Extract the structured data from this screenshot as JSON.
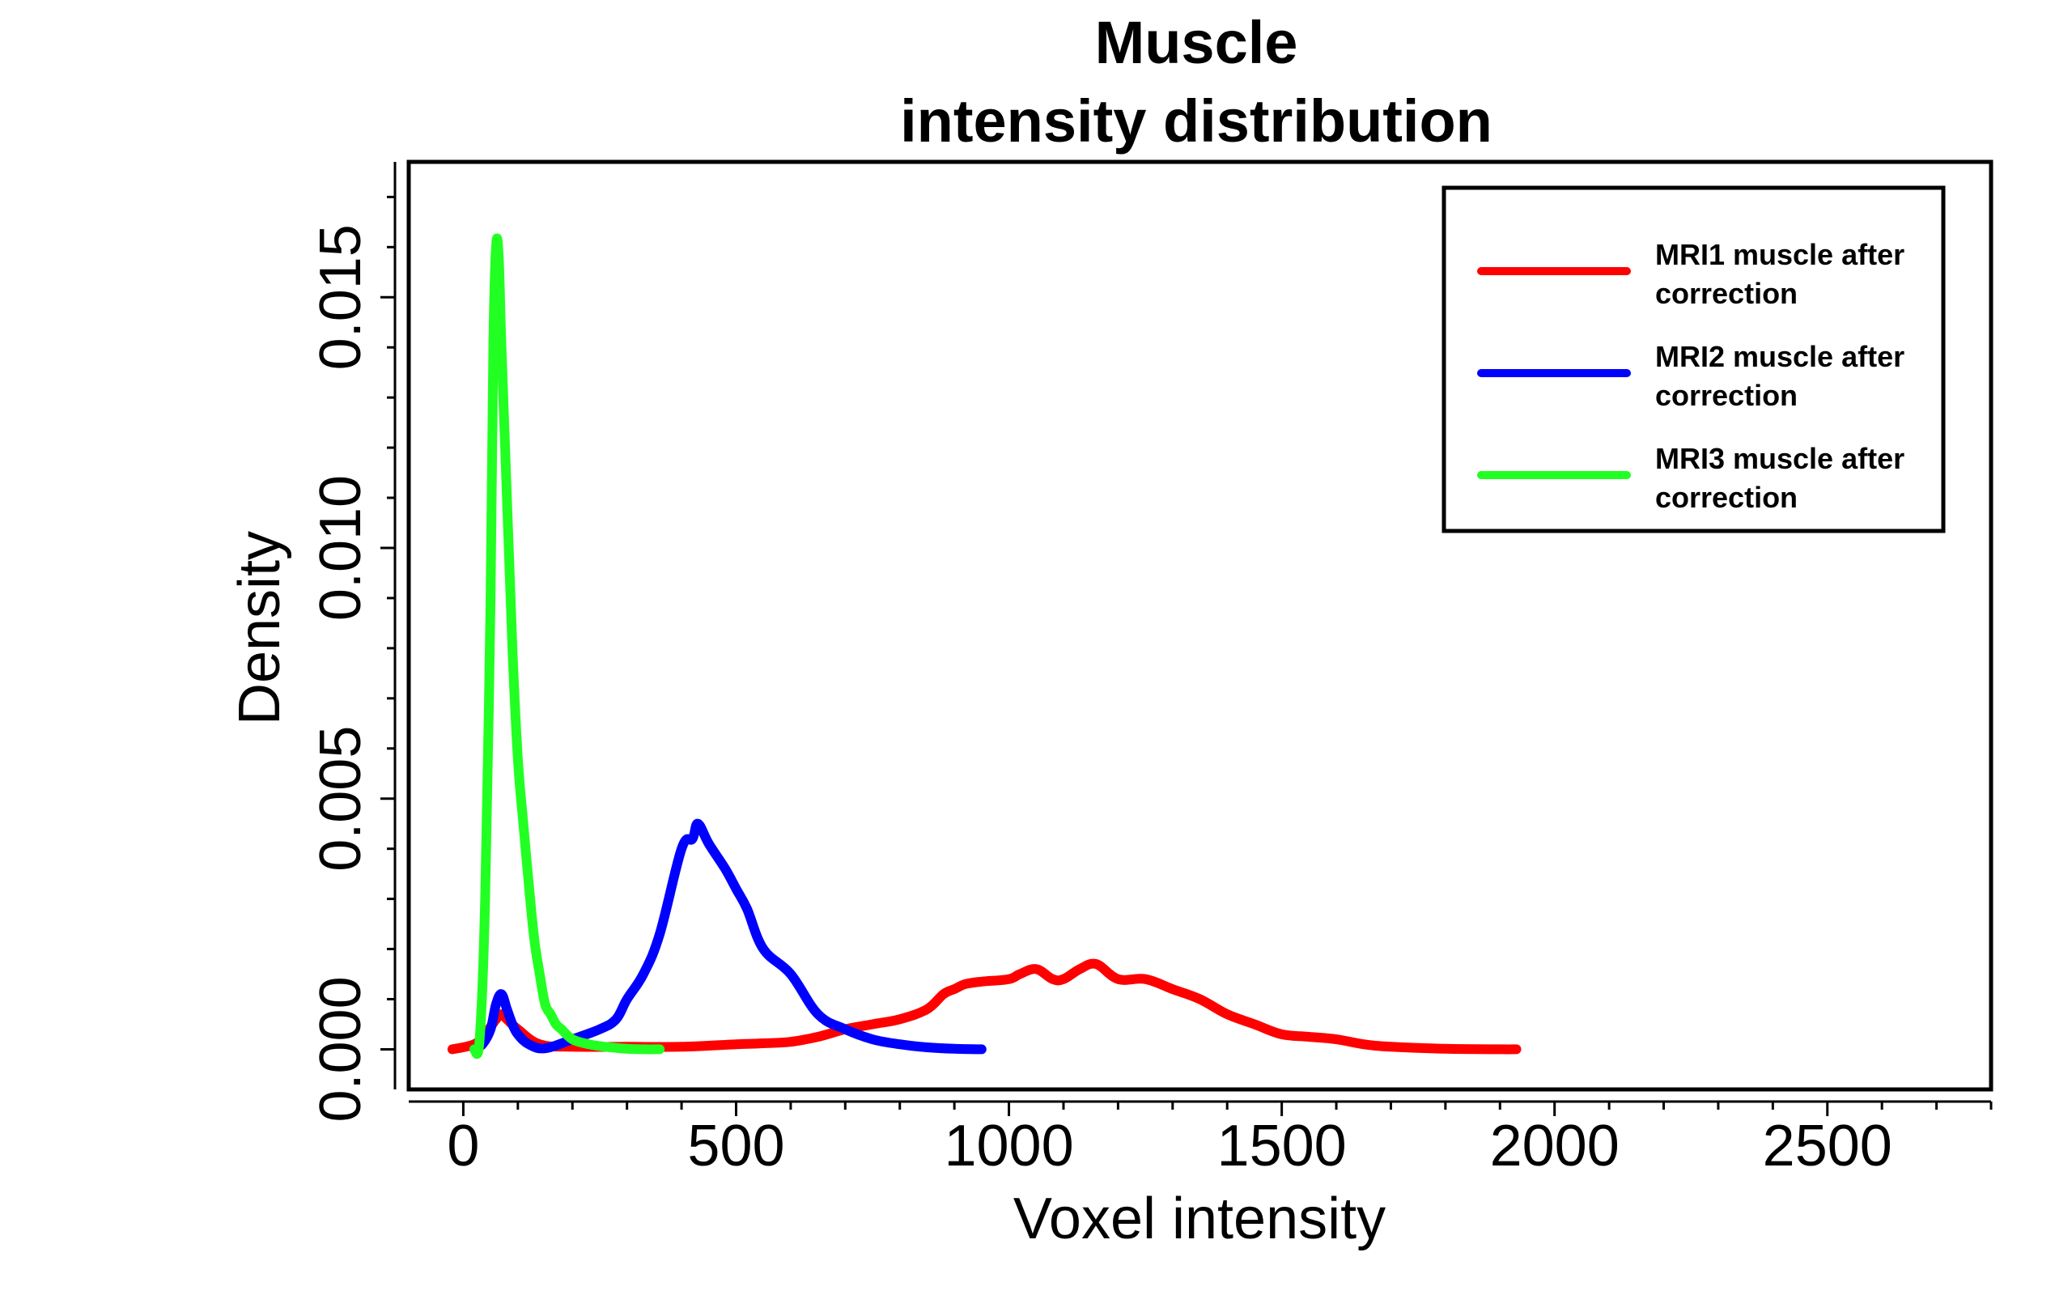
{
  "chart_data": {
    "type": "line",
    "title": [
      "Muscle",
      "intensity distribution"
    ],
    "xlabel": "Voxel intensity",
    "ylabel": "Density",
    "xlim": [
      -100,
      2800
    ],
    "ylim": [
      -0.0008,
      0.0177
    ],
    "xticks": [
      0,
      500,
      1000,
      1500,
      2000,
      2500
    ],
    "xtick_labels": [
      "0",
      "500",
      "1000",
      "1500",
      "2000",
      "2500"
    ],
    "xminor_step": 100,
    "yticks": [
      0,
      0.005,
      0.01,
      0.015
    ],
    "ytick_labels": [
      "0.000",
      "0.005",
      "0.010",
      "0.015"
    ],
    "yminor_step": 0.001,
    "legend_position": "top-right",
    "series": [
      {
        "name": "MRI1 muscle after correction",
        "legend_lines": [
          "MRI1 muscle after",
          "correction"
        ],
        "color": "#ff0000",
        "x": [
          -20,
          20,
          40,
          60,
          70,
          80,
          100,
          140,
          200,
          300,
          400,
          500,
          550,
          600,
          650,
          700,
          750,
          800,
          850,
          880,
          900,
          920,
          950,
          1000,
          1020,
          1050,
          1080,
          1100,
          1130,
          1160,
          1200,
          1250,
          1300,
          1350,
          1400,
          1450,
          1500,
          1550,
          1600,
          1650,
          1700,
          1800,
          1900,
          1930
        ],
        "y": [
          0,
          0.0001,
          0.0003,
          0.0006,
          0.0007,
          0.0006,
          0.0004,
          0.0001,
          5e-05,
          5e-05,
          5e-05,
          0.0001,
          0.00012,
          0.00015,
          0.00025,
          0.0004,
          0.0005,
          0.0006,
          0.0008,
          0.0011,
          0.0012,
          0.0013,
          0.00135,
          0.0014,
          0.0015,
          0.0016,
          0.0014,
          0.0014,
          0.0016,
          0.0017,
          0.0014,
          0.0014,
          0.0012,
          0.001,
          0.0007,
          0.0005,
          0.0003,
          0.00025,
          0.0002,
          0.0001,
          5e-05,
          1e-05,
          0,
          0
        ]
      },
      {
        "name": "MRI2 muscle after correction",
        "legend_lines": [
          "MRI2 muscle after",
          "correction"
        ],
        "color": "#0000ff",
        "x": [
          20,
          35,
          50,
          60,
          70,
          80,
          90,
          100,
          120,
          150,
          200,
          250,
          280,
          300,
          330,
          360,
          400,
          420,
          430,
          450,
          480,
          500,
          520,
          550,
          600,
          650,
          700,
          750,
          800,
          850,
          900,
          950
        ],
        "y": [
          0,
          0.0001,
          0.0004,
          0.0009,
          0.0011,
          0.0008,
          0.0005,
          0.0003,
          0.0001,
          2e-05,
          0.0002,
          0.0004,
          0.0006,
          0.001,
          0.0015,
          0.0023,
          0.004,
          0.0042,
          0.0045,
          0.0041,
          0.0036,
          0.0032,
          0.0028,
          0.002,
          0.0015,
          0.0007,
          0.0004,
          0.0002,
          0.0001,
          4e-05,
          1e-05,
          0
        ]
      },
      {
        "name": "MRI3 muscle after correction",
        "legend_lines": [
          "MRI3 muscle after",
          "correction"
        ],
        "color": "#22ff22",
        "x": [
          20,
          30,
          40,
          50,
          55,
          60,
          65,
          70,
          80,
          90,
          100,
          110,
          120,
          130,
          140,
          150,
          160,
          170,
          180,
          200,
          230,
          260,
          300,
          330,
          360
        ],
        "y": [
          0,
          0.0002,
          0.003,
          0.009,
          0.014,
          0.016,
          0.0158,
          0.014,
          0.011,
          0.008,
          0.0058,
          0.0045,
          0.0033,
          0.0022,
          0.0015,
          0.0009,
          0.0007,
          0.0005,
          0.0004,
          0.0002,
          0.0001,
          5e-05,
          1e-05,
          0,
          0
        ]
      }
    ]
  }
}
